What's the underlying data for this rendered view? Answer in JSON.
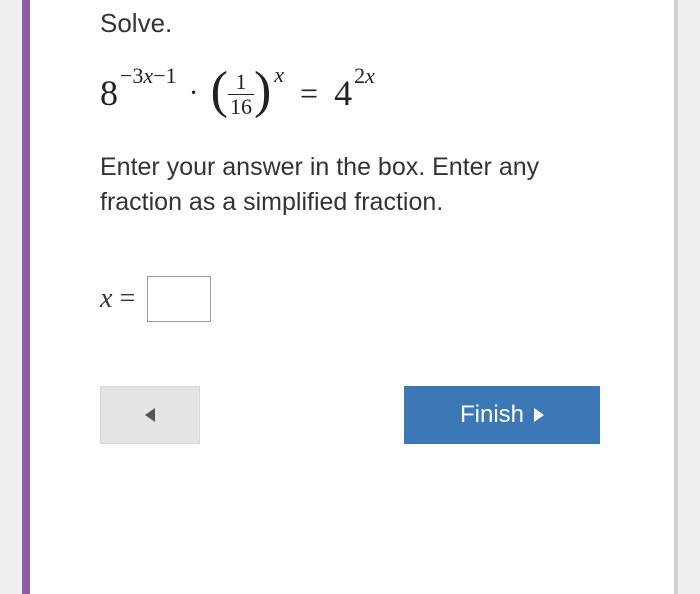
{
  "prompt": {
    "title": "Solve.",
    "instructions": "Enter your answer in the box. Enter any fraction as a simplified fraction."
  },
  "equation": {
    "term1": {
      "base": "8",
      "exponent_prefix": "−3",
      "exponent_var": "x",
      "exponent_suffix": "−1"
    },
    "operator": "·",
    "term2": {
      "lparen": "(",
      "frac_num": "1",
      "frac_den": "16",
      "rparen": ")",
      "exponent": "x"
    },
    "equals": "=",
    "term3": {
      "base": "4",
      "exponent_coef": "2",
      "exponent_var": "x"
    }
  },
  "answer": {
    "label_var": "x",
    "label_eq": " =",
    "value": ""
  },
  "buttons": {
    "finish": "Finish"
  },
  "colors": {
    "accent_left": "#8b5fa8",
    "finish_bg": "#3b78b5",
    "back_bg": "#e4e4e4",
    "text": "#333333"
  }
}
